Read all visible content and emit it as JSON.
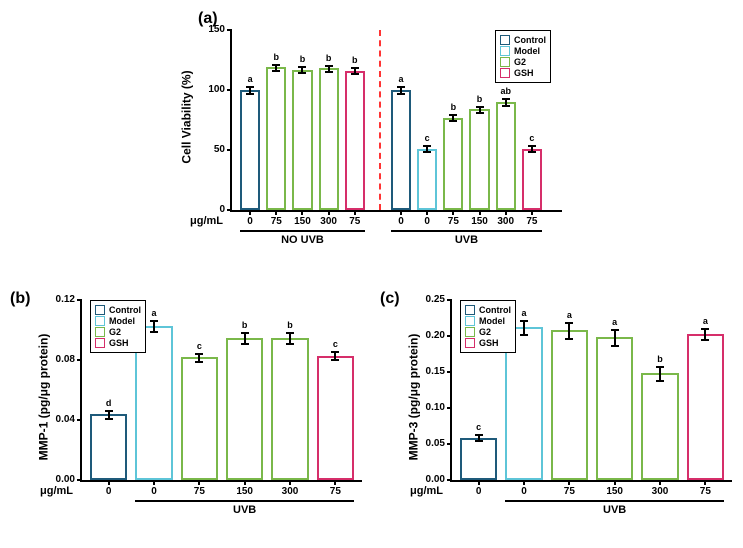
{
  "colors": {
    "control": "#1e5a7a",
    "model": "#5ec5d8",
    "g2": "#7ab84a",
    "gsh": "#d62e6a",
    "divider": "#ff3333"
  },
  "legend_items": [
    {
      "key": "control",
      "label": "Control"
    },
    {
      "key": "model",
      "label": "Model"
    },
    {
      "key": "g2",
      "label": "G2"
    },
    {
      "key": "gsh",
      "label": "GSH"
    }
  ],
  "panel_a": {
    "label": "(a)",
    "y_axis_label": "Cell Viability (%)",
    "x_unit_label": "μg/mL",
    "ylim": [
      0,
      150
    ],
    "ytick_step": 50,
    "groups": [
      {
        "name": "NO UVB",
        "bars": [
          {
            "x": "0",
            "val": 100,
            "err": 3,
            "sig": "a",
            "color": "control"
          },
          {
            "x": "75",
            "val": 119,
            "err": 3,
            "sig": "b",
            "color": "g2"
          },
          {
            "x": "150",
            "val": 117,
            "err": 3,
            "sig": "b",
            "color": "g2"
          },
          {
            "x": "300",
            "val": 118,
            "err": 3,
            "sig": "b",
            "color": "g2"
          },
          {
            "x": "75",
            "val": 116,
            "err": 3,
            "sig": "b",
            "color": "gsh"
          }
        ]
      },
      {
        "name": "UVB",
        "bars": [
          {
            "x": "0",
            "val": 100,
            "err": 3,
            "sig": "a",
            "color": "control"
          },
          {
            "x": "0",
            "val": 51,
            "err": 3,
            "sig": "c",
            "color": "model"
          },
          {
            "x": "75",
            "val": 77,
            "err": 3,
            "sig": "b",
            "color": "g2"
          },
          {
            "x": "150",
            "val": 84,
            "err": 3,
            "sig": "b",
            "color": "g2"
          },
          {
            "x": "300",
            "val": 90,
            "err": 3,
            "sig": "ab",
            "color": "g2"
          },
          {
            "x": "75",
            "val": 51,
            "err": 3,
            "sig": "c",
            "color": "gsh"
          }
        ]
      }
    ]
  },
  "panel_b": {
    "label": "(b)",
    "y_axis_label": "MMP-1 (pg/μg protein)",
    "x_unit_label": "μg/mL",
    "ylim": [
      0,
      0.12
    ],
    "ytick_step": 0.04,
    "group_name": "UVB",
    "bars": [
      {
        "x": "0",
        "val": 0.044,
        "err": 0.003,
        "sig": "d",
        "color": "control",
        "in_group": false
      },
      {
        "x": "0",
        "val": 0.103,
        "err": 0.004,
        "sig": "a",
        "color": "model",
        "in_group": true
      },
      {
        "x": "75",
        "val": 0.082,
        "err": 0.003,
        "sig": "c",
        "color": "g2",
        "in_group": true
      },
      {
        "x": "150",
        "val": 0.095,
        "err": 0.004,
        "sig": "b",
        "color": "g2",
        "in_group": true
      },
      {
        "x": "300",
        "val": 0.095,
        "err": 0.004,
        "sig": "b",
        "color": "g2",
        "in_group": true
      },
      {
        "x": "75",
        "val": 0.083,
        "err": 0.003,
        "sig": "c",
        "color": "gsh",
        "in_group": true
      }
    ]
  },
  "panel_c": {
    "label": "(c)",
    "y_axis_label": "MMP-3 (pg/μg protein)",
    "x_unit_label": "μg/mL",
    "ylim": [
      0,
      0.25
    ],
    "ytick_step": 0.05,
    "group_name": "UVB",
    "bars": [
      {
        "x": "0",
        "val": 0.059,
        "err": 0.005,
        "sig": "c",
        "color": "control",
        "in_group": false
      },
      {
        "x": "0",
        "val": 0.212,
        "err": 0.01,
        "sig": "a",
        "color": "model",
        "in_group": true
      },
      {
        "x": "75",
        "val": 0.208,
        "err": 0.012,
        "sig": "a",
        "color": "g2",
        "in_group": true
      },
      {
        "x": "150",
        "val": 0.198,
        "err": 0.012,
        "sig": "a",
        "color": "g2",
        "in_group": true
      },
      {
        "x": "300",
        "val": 0.148,
        "err": 0.01,
        "sig": "b",
        "color": "g2",
        "in_group": true
      },
      {
        "x": "75",
        "val": 0.203,
        "err": 0.008,
        "sig": "a",
        "color": "gsh",
        "in_group": true
      }
    ]
  }
}
